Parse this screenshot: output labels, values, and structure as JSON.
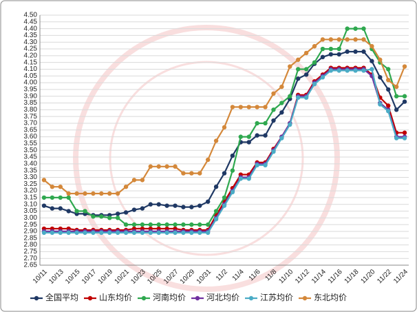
{
  "chart_data": {
    "type": "line",
    "categories": [
      "10/11",
      null,
      "10/13",
      null,
      "10/15",
      null,
      "10/17",
      null,
      "10/19",
      null,
      "10/21",
      null,
      "10/23",
      null,
      "10/25",
      null,
      "10/27",
      null,
      "10/29",
      null,
      "10/31",
      null,
      "11/2",
      null,
      "11/4",
      null,
      "11/6",
      null,
      "11/8",
      null,
      "11/10",
      null,
      "11/12",
      null,
      "11/14",
      null,
      "11/16",
      null,
      "11/18",
      null,
      "11/20",
      null,
      "11/22",
      null,
      "11/24"
    ],
    "series": [
      {
        "name": "全国平均",
        "color": "#1f3864",
        "values": [
          3.09,
          3.07,
          3.07,
          3.05,
          3.03,
          3.03,
          3.02,
          3.02,
          3.02,
          3.03,
          3.04,
          3.06,
          3.07,
          3.1,
          3.1,
          3.09,
          3.09,
          3.08,
          3.08,
          3.09,
          3.12,
          3.23,
          3.33,
          3.46,
          3.56,
          3.56,
          3.61,
          3.61,
          3.72,
          3.78,
          3.88,
          4.03,
          4.06,
          4.14,
          4.19,
          4.21,
          4.21,
          4.23,
          4.23,
          4.23,
          4.16,
          4.04,
          3.95,
          3.8,
          3.86
        ]
      },
      {
        "name": "山东均价",
        "color": "#c00000",
        "values": [
          2.92,
          2.92,
          2.92,
          2.92,
          2.91,
          2.91,
          2.91,
          2.91,
          2.91,
          2.91,
          2.91,
          2.92,
          2.92,
          2.92,
          2.92,
          2.92,
          2.92,
          2.91,
          2.91,
          2.91,
          2.91,
          3.02,
          3.12,
          3.22,
          3.32,
          3.32,
          3.41,
          3.41,
          3.51,
          3.6,
          3.7,
          3.91,
          3.91,
          4.01,
          4.06,
          4.11,
          4.11,
          4.11,
          4.11,
          4.11,
          4.06,
          3.89,
          3.83,
          3.63,
          3.63
        ]
      },
      {
        "name": "河南均价",
        "color": "#2fa84f",
        "values": [
          3.15,
          3.15,
          3.15,
          3.15,
          3.05,
          3.05,
          3.01,
          3.01,
          3.0,
          3.0,
          2.95,
          2.95,
          2.95,
          2.95,
          2.95,
          2.95,
          2.95,
          2.95,
          2.95,
          2.95,
          2.95,
          3.05,
          3.15,
          3.35,
          3.6,
          3.6,
          3.7,
          3.7,
          3.8,
          3.85,
          3.9,
          4.1,
          4.1,
          4.15,
          4.25,
          4.25,
          4.25,
          4.4,
          4.4,
          4.4,
          4.25,
          4.15,
          4.1,
          3.9,
          3.9
        ]
      },
      {
        "name": "河北均价",
        "color": "#7030a0",
        "values": [
          2.9,
          2.9,
          2.9,
          2.9,
          2.9,
          2.9,
          2.9,
          2.9,
          2.9,
          2.9,
          2.9,
          2.9,
          2.9,
          2.9,
          2.9,
          2.9,
          2.9,
          2.9,
          2.9,
          2.9,
          2.9,
          3.0,
          3.1,
          3.2,
          3.3,
          3.3,
          3.4,
          3.4,
          3.5,
          3.6,
          3.7,
          3.9,
          3.9,
          4.0,
          4.05,
          4.1,
          4.1,
          4.1,
          4.1,
          4.1,
          4.05,
          3.85,
          3.8,
          3.6,
          3.6
        ]
      },
      {
        "name": "江苏均价",
        "color": "#4bacc6",
        "values": [
          2.89,
          2.89,
          2.89,
          2.89,
          2.89,
          2.89,
          2.89,
          2.89,
          2.89,
          2.89,
          2.89,
          2.89,
          2.89,
          2.89,
          2.89,
          2.89,
          2.89,
          2.89,
          2.89,
          2.89,
          2.89,
          2.99,
          3.09,
          3.19,
          3.29,
          3.29,
          3.39,
          3.39,
          3.49,
          3.59,
          3.69,
          3.89,
          3.89,
          3.99,
          4.04,
          4.09,
          4.09,
          4.09,
          4.09,
          4.09,
          4.1,
          3.84,
          3.79,
          3.59,
          3.59
        ]
      },
      {
        "name": "东北均价",
        "color": "#d4883a",
        "values": [
          3.28,
          3.23,
          3.23,
          3.18,
          3.18,
          3.18,
          3.18,
          3.18,
          3.18,
          3.18,
          3.23,
          3.28,
          3.28,
          3.38,
          3.38,
          3.38,
          3.38,
          3.33,
          3.33,
          3.33,
          3.43,
          3.57,
          3.67,
          3.82,
          3.82,
          3.82,
          3.82,
          3.82,
          3.92,
          3.97,
          4.12,
          4.17,
          4.22,
          4.27,
          4.32,
          4.32,
          4.32,
          4.32,
          4.32,
          4.32,
          4.27,
          4.17,
          4.02,
          3.97,
          4.12
        ]
      }
    ],
    "ylim": [
      2.65,
      4.5
    ],
    "yticks": [
      2.65,
      {
        "value": 2.7,
        "label": "2.70"
      },
      2.75,
      {
        "value": 2.8,
        "label": "2.80"
      },
      2.85,
      {
        "value": 2.9,
        "label": "2.90"
      },
      2.95,
      {
        "value": 3.0,
        "label": "3.00"
      },
      3.05,
      {
        "value": 3.1,
        "label": "3.10"
      },
      3.15,
      {
        "value": 3.2,
        "label": "3.20"
      },
      3.25,
      {
        "value": 3.3,
        "label": "3.30"
      },
      3.35,
      {
        "value": 3.4,
        "label": "3.40"
      },
      3.45,
      {
        "value": 3.5,
        "label": "3.50"
      },
      3.55,
      {
        "value": 3.6,
        "label": "3.60"
      },
      3.65,
      {
        "value": 3.7,
        "label": "3.70"
      },
      3.75,
      {
        "value": 3.8,
        "label": "3.80"
      },
      3.85,
      {
        "value": 3.9,
        "label": "3.90"
      },
      3.95,
      {
        "value": 4.0,
        "label": "4.00"
      },
      4.05,
      {
        "value": 4.1,
        "label": "4.10"
      },
      4.15,
      {
        "value": 4.2,
        "label": "4.20"
      },
      4.25,
      {
        "value": 4.3,
        "label": "4.30"
      },
      4.35,
      {
        "value": 4.4,
        "label": "4.40"
      },
      4.45,
      {
        "value": 4.5,
        "label": "4.50"
      }
    ],
    "grid": true,
    "legend": "bottom"
  }
}
